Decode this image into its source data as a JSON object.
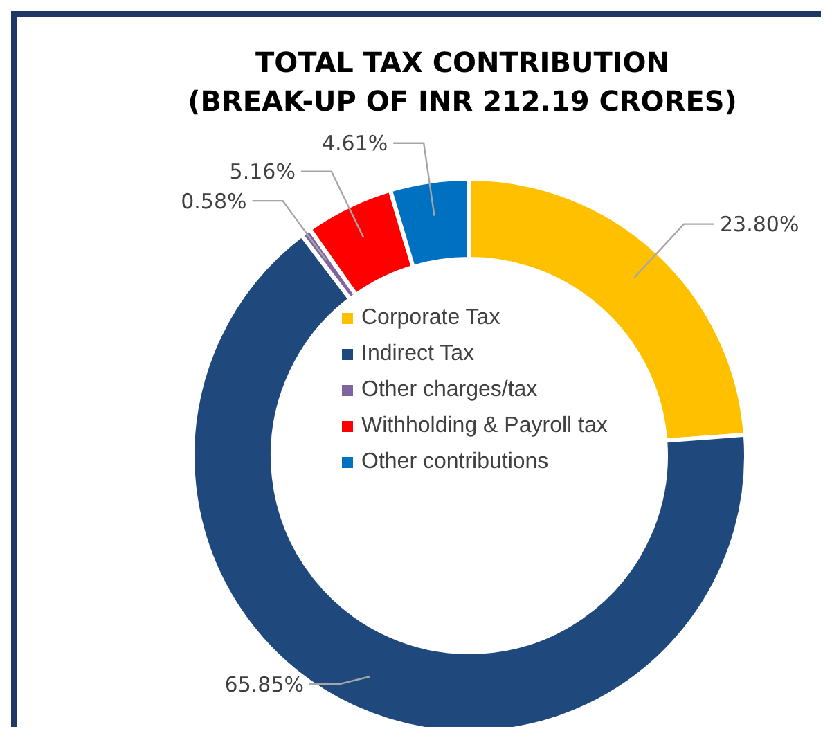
{
  "chart_data": {
    "type": "donut",
    "title": "TOTAL TAX CONTRIBUTION\n(BREAK-UP OF INR 212.19 CRORES)",
    "categories": [
      "Corporate Tax",
      "Indirect Tax",
      "Other charges/tax",
      "Withholding & Payroll tax",
      "Other contributions"
    ],
    "values": [
      23.8,
      65.85,
      0.58,
      5.16,
      4.61
    ],
    "colors": [
      "#ffc000",
      "#1f497d",
      "#8064a2",
      "#ff0000",
      "#0070c0"
    ],
    "value_labels": [
      "23.80%",
      "65.85%",
      "0.58%",
      "5.16%",
      "4.61%"
    ],
    "legend": "center"
  }
}
